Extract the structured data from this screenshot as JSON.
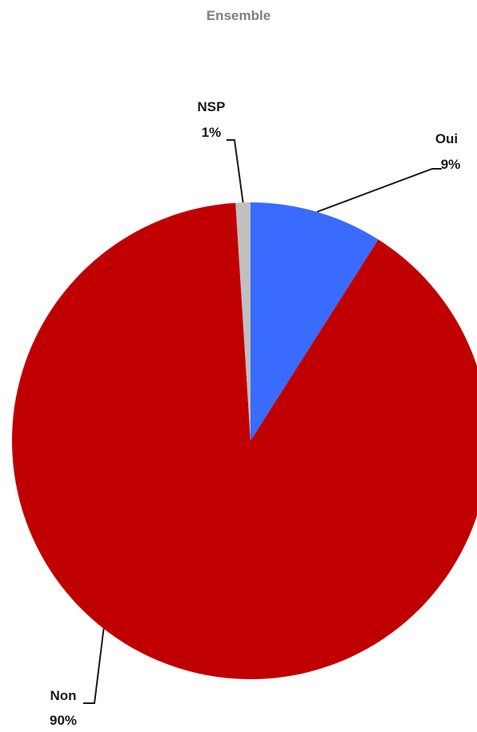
{
  "chart_data": {
    "type": "pie",
    "title": "Ensemble",
    "slices": [
      {
        "label": "Oui",
        "value": 9,
        "value_label": "9%",
        "color": "#3a6bff"
      },
      {
        "label": "Non",
        "value": 90,
        "value_label": "90%",
        "color": "#c00000"
      },
      {
        "label": "NSP",
        "value": 1,
        "value_label": "1%",
        "color": "#c0c0c0"
      }
    ],
    "start": "12 o'clock, clockwise",
    "legend": "none"
  }
}
